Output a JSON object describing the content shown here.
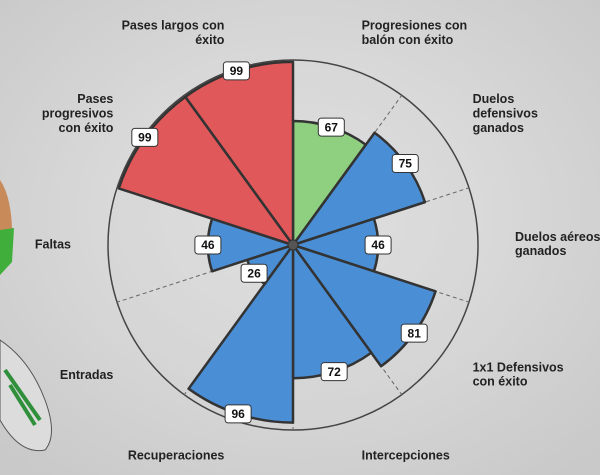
{
  "chart_data": {
    "type": "polar_bar",
    "categories": [
      "Progresiones con\nbalón con éxito",
      "Duelos\ndefensivos\nganados",
      "Duelos aéreos\nganados",
      "1x1 Defensivos\ncon éxito",
      "Intercepciones",
      "Recuperaciones",
      "Entradas",
      "Faltas",
      "Pases\nprogresivos\ncon éxito",
      "Pases largos con\néxito"
    ],
    "values": [
      67,
      75,
      46,
      81,
      72,
      96,
      26,
      46,
      99,
      99
    ],
    "colors": [
      "#8fcf80",
      "#4a8fd6",
      "#4a8fd6",
      "#4a8fd6",
      "#4a8fd6",
      "#4a8fd6",
      "#4a8fd6",
      "#4a8fd6",
      "#e0585a",
      "#e0585a"
    ],
    "rlim": [
      0,
      100
    ],
    "rticks": [
      100
    ]
  }
}
